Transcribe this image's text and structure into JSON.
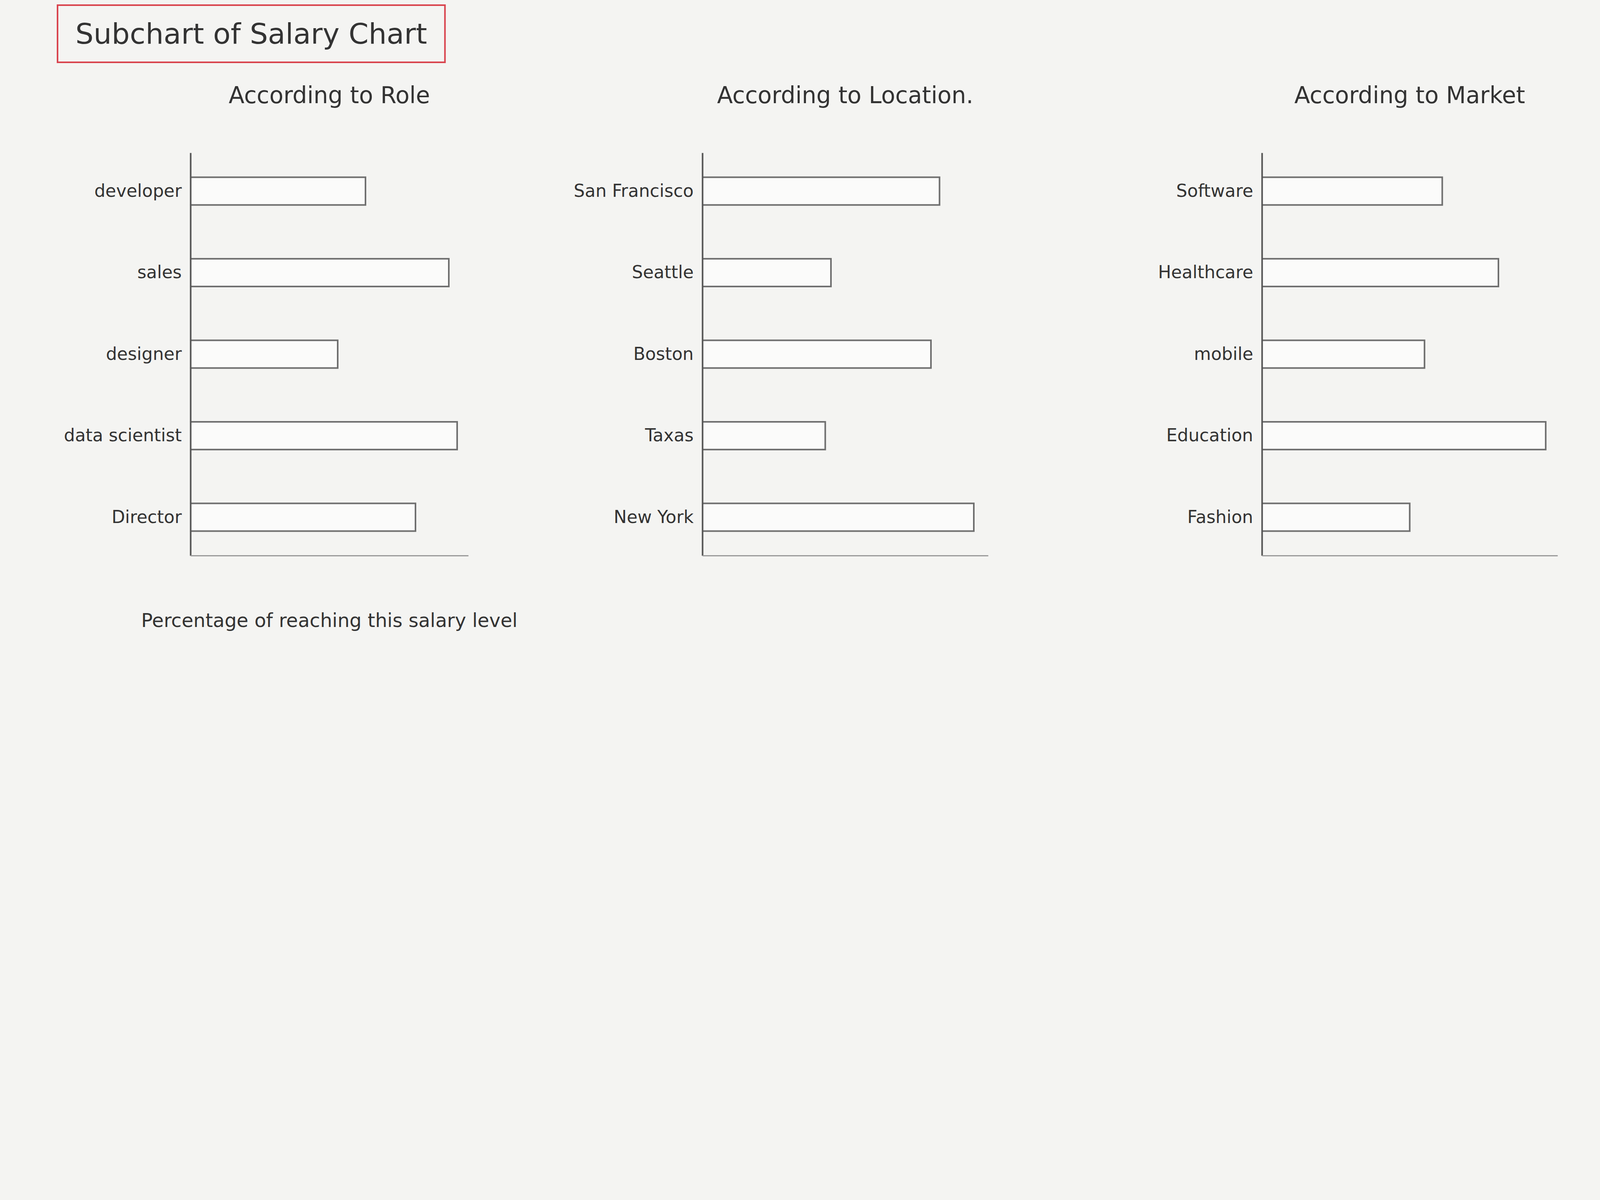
{
  "title": "Subchart of Salary Chart",
  "chart_data": [
    {
      "type": "bar",
      "orientation": "horizontal",
      "title": "According to Role",
      "categories": [
        "developer",
        "sales",
        "designer",
        "data scientist",
        "Director"
      ],
      "values": [
        63,
        93,
        53,
        96,
        81
      ],
      "color": "#6f6f6f",
      "xlim": [
        0,
        100
      ],
      "tick_labels": "y",
      "xlabel": "Percentage of reaching this salary level"
    },
    {
      "type": "bar",
      "orientation": "horizontal",
      "title": "According to Location.",
      "categories": [
        "San Francisco",
        "Seattle",
        "Boston",
        "Taxas",
        "New York"
      ],
      "values": [
        83,
        45,
        80,
        43,
        95
      ],
      "color": "#6f6f6f",
      "xlim": [
        0,
        100
      ],
      "tick_labels": "y"
    },
    {
      "type": "bar",
      "orientation": "horizontal",
      "title": "According to Market",
      "categories": [
        "Software",
        "Healthcare",
        "mobile",
        "Education",
        "Fashion"
      ],
      "values": [
        61,
        80,
        55,
        96,
        50
      ],
      "color": "#6f6f6f",
      "xlim": [
        0,
        100
      ],
      "tick_labels": "y"
    }
  ]
}
